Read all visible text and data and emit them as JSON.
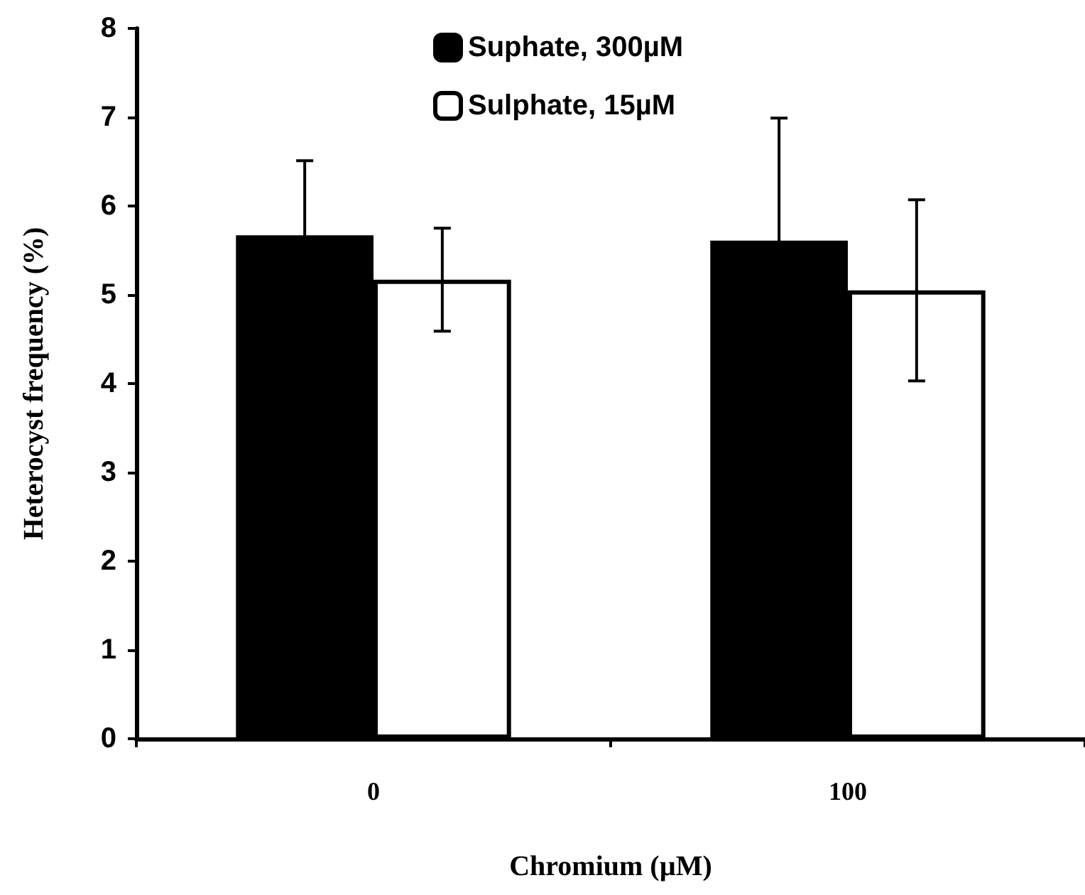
{
  "chart_data": {
    "type": "bar",
    "xlabel": "Chromium (µM)",
    "ylabel": "Heterocyst frequency (%)",
    "categories": [
      "0",
      "100"
    ],
    "series": [
      {
        "name": "Suphate, 300µM",
        "color": "#000000",
        "values": [
          5.67,
          5.61
        ],
        "errors": [
          0.84,
          1.38
        ]
      },
      {
        "name": "Sulphate, 15µM",
        "color": "#ffffff",
        "values": [
          5.17,
          5.05
        ],
        "errors": [
          0.58,
          1.02
        ]
      }
    ],
    "ylim": [
      0,
      8
    ],
    "yticks": [
      0,
      1,
      2,
      3,
      4,
      5,
      6,
      7,
      8
    ],
    "grid": false,
    "legend": "top"
  }
}
